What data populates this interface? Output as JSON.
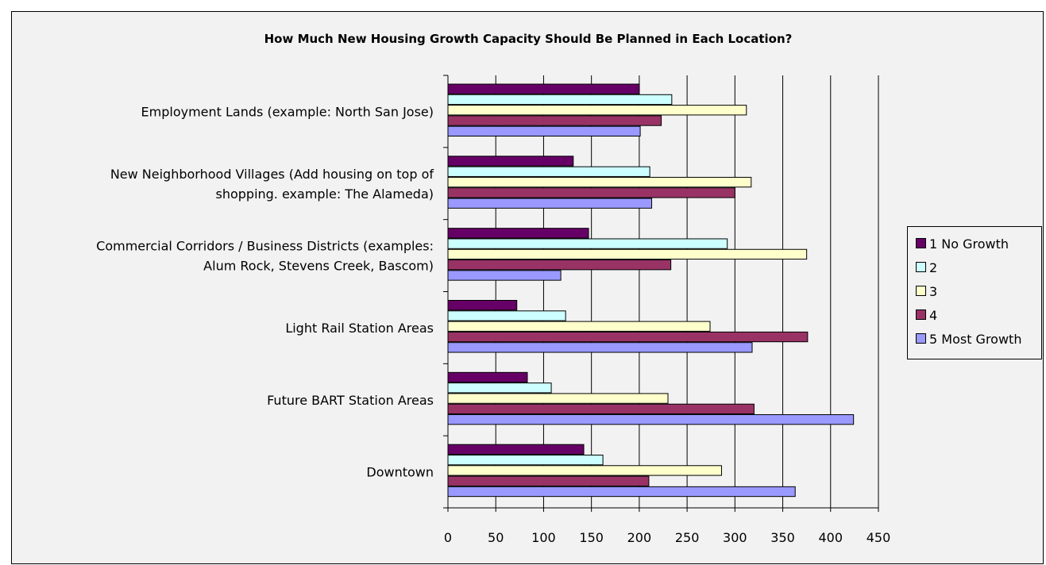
{
  "chart_data": {
    "type": "bar",
    "orientation": "horizontal",
    "title": "How Much New Housing Growth Capacity Should Be Planned in Each Location?",
    "xlabel": "",
    "ylabel": "",
    "xlim": [
      0,
      450
    ],
    "xticks": [
      "0",
      "50",
      "100",
      "150",
      "200",
      "250",
      "300",
      "350",
      "400",
      "450"
    ],
    "grid": "vertical",
    "legend_position": "right",
    "categories": [
      [
        "Employment Lands (example: North San Jose)"
      ],
      [
        "New Neighborhood Villages (Add housing on top of",
        "shopping. example: The Alameda)"
      ],
      [
        "Commercial Corridors / Business Districts (examples:",
        "Alum Rock, Stevens Creek, Bascom)"
      ],
      [
        "Light Rail Station Areas"
      ],
      [
        "Future BART Station Areas"
      ],
      [
        "Downtown"
      ]
    ],
    "series": [
      {
        "name": "1 No Growth",
        "color": "#660066",
        "values": [
          200,
          131,
          147,
          72,
          83,
          142
        ]
      },
      {
        "name": "2",
        "color": "#ccffff",
        "values": [
          234,
          211,
          292,
          123,
          108,
          162
        ]
      },
      {
        "name": "3",
        "color": "#ffffcc",
        "values": [
          312,
          317,
          375,
          274,
          230,
          286
        ]
      },
      {
        "name": "4",
        "color": "#993366",
        "values": [
          223,
          300,
          233,
          376,
          320,
          210
        ]
      },
      {
        "name": "5 Most Growth",
        "color": "#9999ff",
        "values": [
          201,
          213,
          118,
          318,
          424,
          363
        ]
      }
    ]
  }
}
